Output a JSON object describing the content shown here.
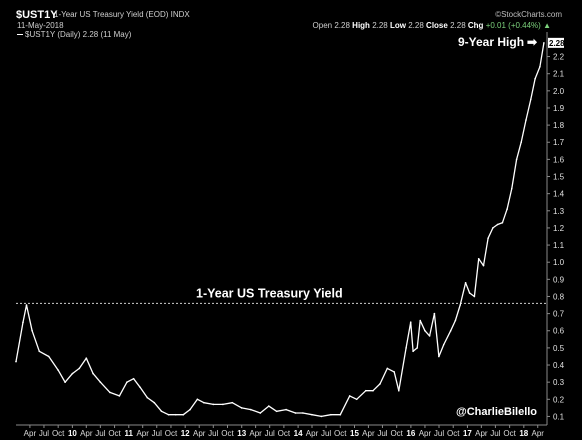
{
  "header": {
    "symbol": "$UST1Y",
    "description": "1-Year US Treasury Yield (EOD) INDX",
    "date": "11-May-2018",
    "brand": "©StockCharts.com",
    "open_label": "Open",
    "open_value": "2.28",
    "high_label": "High",
    "high_value": "2.28",
    "low_label": "Low",
    "low_value": "2.28",
    "close_label": "Close",
    "close_value": "2.28",
    "chg_label": "Chg",
    "chg_value": "+0.01 (+0.44%)",
    "chg_arrow": "▲",
    "legend": "$UST1Y (Daily) 2.28 (11 May)"
  },
  "colors": {
    "background": "#000000",
    "line": "#ffffff",
    "text": "#ffffff",
    "reference_line": "#cfcfcf"
  },
  "chart_data": {
    "type": "line",
    "title": "1-Year US Treasury Yield",
    "series": [
      {
        "values_by_date": [
          [
            "2009-01-01",
            0.42
          ],
          [
            "2009-02-15",
            0.65
          ],
          [
            "2009-03-10",
            0.75
          ],
          [
            "2009-04-15",
            0.6
          ],
          [
            "2009-06-01",
            0.48
          ],
          [
            "2009-08-01",
            0.45
          ],
          [
            "2009-10-01",
            0.37
          ],
          [
            "2009-11-15",
            0.3
          ],
          [
            "2010-01-01",
            0.35
          ],
          [
            "2010-02-15",
            0.38
          ],
          [
            "2010-04-01",
            0.44
          ],
          [
            "2010-05-15",
            0.35
          ],
          [
            "2010-07-01",
            0.3
          ],
          [
            "2010-09-01",
            0.24
          ],
          [
            "2010-11-01",
            0.22
          ],
          [
            "2010-12-20",
            0.3
          ],
          [
            "2011-02-01",
            0.32
          ],
          [
            "2011-03-15",
            0.27
          ],
          [
            "2011-05-01",
            0.21
          ],
          [
            "2011-06-15",
            0.18
          ],
          [
            "2011-08-01",
            0.13
          ],
          [
            "2011-09-15",
            0.11
          ],
          [
            "2011-11-01",
            0.11
          ],
          [
            "2011-12-20",
            0.11
          ],
          [
            "2012-02-01",
            0.14
          ],
          [
            "2012-03-20",
            0.2
          ],
          [
            "2012-05-01",
            0.18
          ],
          [
            "2012-07-01",
            0.17
          ],
          [
            "2012-09-01",
            0.17
          ],
          [
            "2012-11-01",
            0.18
          ],
          [
            "2013-01-01",
            0.15
          ],
          [
            "2013-03-01",
            0.14
          ],
          [
            "2013-05-01",
            0.12
          ],
          [
            "2013-06-25",
            0.16
          ],
          [
            "2013-08-15",
            0.13
          ],
          [
            "2013-10-15",
            0.14
          ],
          [
            "2013-12-15",
            0.12
          ],
          [
            "2014-02-01",
            0.12
          ],
          [
            "2014-04-01",
            0.11
          ],
          [
            "2014-06-01",
            0.1
          ],
          [
            "2014-08-01",
            0.11
          ],
          [
            "2014-10-01",
            0.11
          ],
          [
            "2014-12-01",
            0.22
          ],
          [
            "2015-01-15",
            0.2
          ],
          [
            "2015-03-15",
            0.25
          ],
          [
            "2015-05-01",
            0.25
          ],
          [
            "2015-06-15",
            0.29
          ],
          [
            "2015-08-01",
            0.38
          ],
          [
            "2015-09-15",
            0.36
          ],
          [
            "2015-10-15",
            0.25
          ],
          [
            "2015-12-01",
            0.5
          ],
          [
            "2015-12-31",
            0.65
          ],
          [
            "2016-01-15",
            0.48
          ],
          [
            "2016-02-11",
            0.5
          ],
          [
            "2016-03-01",
            0.66
          ],
          [
            "2016-04-01",
            0.6
          ],
          [
            "2016-05-01",
            0.57
          ],
          [
            "2016-06-01",
            0.7
          ],
          [
            "2016-06-30",
            0.45
          ],
          [
            "2016-08-01",
            0.52
          ],
          [
            "2016-09-15",
            0.6
          ],
          [
            "2016-10-15",
            0.66
          ],
          [
            "2016-11-15",
            0.75
          ],
          [
            "2016-12-20",
            0.88
          ],
          [
            "2017-01-15",
            0.82
          ],
          [
            "2017-02-15",
            0.8
          ],
          [
            "2017-03-15",
            1.02
          ],
          [
            "2017-04-15",
            0.98
          ],
          [
            "2017-05-15",
            1.14
          ],
          [
            "2017-06-15",
            1.2
          ],
          [
            "2017-07-15",
            1.22
          ],
          [
            "2017-08-15",
            1.23
          ],
          [
            "2017-09-15",
            1.31
          ],
          [
            "2017-10-15",
            1.43
          ],
          [
            "2017-11-15",
            1.6
          ],
          [
            "2017-12-15",
            1.7
          ],
          [
            "2018-01-15",
            1.83
          ],
          [
            "2018-02-15",
            1.95
          ],
          [
            "2018-03-15",
            2.07
          ],
          [
            "2018-04-15",
            2.14
          ],
          [
            "2018-05-11",
            2.28
          ]
        ]
      }
    ],
    "y_axis": {
      "range": [
        0.05,
        2.32
      ],
      "ticks": [
        "0.1",
        "0.2",
        "0.3",
        "0.4",
        "0.5",
        "0.6",
        "0.7",
        "0.8",
        "0.9",
        "1.0",
        "1.1",
        "1.2",
        "1.3",
        "1.4",
        "1.5",
        "1.6",
        "1.7",
        "1.8",
        "1.9",
        "2.0",
        "2.1",
        "2.2"
      ],
      "position": "right"
    },
    "x_axis": {
      "range": [
        "2009-01-01",
        "2018-05-31"
      ],
      "ticks": [
        {
          "date": "2009-04-01",
          "label": "Apr"
        },
        {
          "date": "2009-07-01",
          "label": "Jul"
        },
        {
          "date": "2009-10-01",
          "label": "Oct"
        },
        {
          "date": "2010-01-01",
          "label": "10",
          "year": true
        },
        {
          "date": "2010-04-01",
          "label": "Apr"
        },
        {
          "date": "2010-07-01",
          "label": "Jul"
        },
        {
          "date": "2010-10-01",
          "label": "Oct"
        },
        {
          "date": "2011-01-01",
          "label": "11",
          "year": true
        },
        {
          "date": "2011-04-01",
          "label": "Apr"
        },
        {
          "date": "2011-07-01",
          "label": "Jul"
        },
        {
          "date": "2011-10-01",
          "label": "Oct"
        },
        {
          "date": "2012-01-01",
          "label": "12",
          "year": true
        },
        {
          "date": "2012-04-01",
          "label": "Apr"
        },
        {
          "date": "2012-07-01",
          "label": "Jul"
        },
        {
          "date": "2012-10-01",
          "label": "Oct"
        },
        {
          "date": "2013-01-01",
          "label": "13",
          "year": true
        },
        {
          "date": "2013-04-01",
          "label": "Apr"
        },
        {
          "date": "2013-07-01",
          "label": "Jul"
        },
        {
          "date": "2013-10-01",
          "label": "Oct"
        },
        {
          "date": "2014-01-01",
          "label": "14",
          "year": true
        },
        {
          "date": "2014-04-01",
          "label": "Apr"
        },
        {
          "date": "2014-07-01",
          "label": "Jul"
        },
        {
          "date": "2014-10-01",
          "label": "Oct"
        },
        {
          "date": "2015-01-01",
          "label": "15",
          "year": true
        },
        {
          "date": "2015-04-01",
          "label": "Apr"
        },
        {
          "date": "2015-07-01",
          "label": "Jul"
        },
        {
          "date": "2015-10-01",
          "label": "Oct"
        },
        {
          "date": "2016-01-01",
          "label": "16",
          "year": true
        },
        {
          "date": "2016-04-01",
          "label": "Apr"
        },
        {
          "date": "2016-07-01",
          "label": "Jul"
        },
        {
          "date": "2016-10-01",
          "label": "Oct"
        },
        {
          "date": "2017-01-01",
          "label": "17",
          "year": true
        },
        {
          "date": "2017-04-01",
          "label": "Apr"
        },
        {
          "date": "2017-07-01",
          "label": "Jul"
        },
        {
          "date": "2017-10-01",
          "label": "Oct"
        },
        {
          "date": "2018-01-01",
          "label": "18",
          "year": true
        },
        {
          "date": "2018-04-01",
          "label": "Apr"
        }
      ]
    },
    "reference_line": {
      "y": 0.76,
      "style": "dashed"
    },
    "last_value_label": "2.28",
    "annotations": {
      "series_label": "1-Year US Treasury Yield",
      "high_label": "9-Year High",
      "high_arrow": "➡",
      "credit": "@CharlieBilello"
    },
    "grid": false,
    "legend": "top-left"
  }
}
